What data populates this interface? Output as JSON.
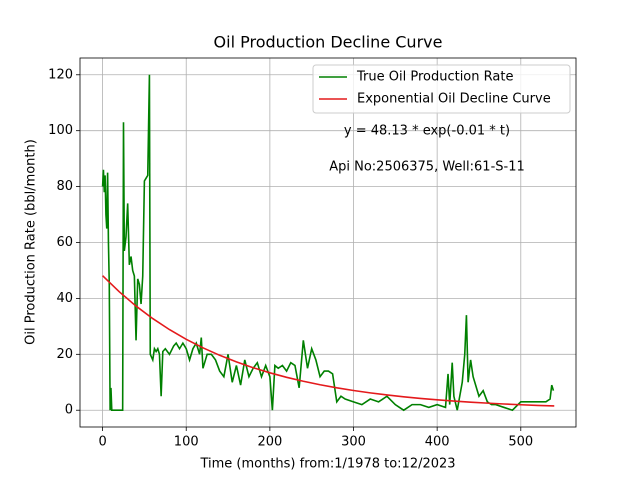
{
  "chart_data": {
    "type": "line",
    "title": "Oil Production Decline Curve",
    "x_label": "Time (months) from:1/1978 to:12/2023",
    "y_label": "Oil Production Rate (bbl/month)",
    "annotations": [
      "y = 48.13 * exp(-0.01 * t)",
      "Api No:2506375, Well:61-S-11"
    ],
    "xlim": [
      -27,
      566
    ],
    "ylim": [
      -6,
      126
    ],
    "xticks": [
      0,
      100,
      200,
      300,
      400,
      500
    ],
    "yticks": [
      0,
      20,
      40,
      60,
      80,
      100,
      120
    ],
    "grid": true,
    "legend": "upper right",
    "series": [
      {
        "name": "True Oil Production Rate",
        "color": "#008000",
        "x": [
          0,
          1,
          2,
          3,
          4,
          5,
          6,
          7,
          8,
          9,
          10,
          11,
          12,
          24,
          25,
          26,
          28,
          30,
          32,
          34,
          36,
          38,
          40,
          42,
          44,
          46,
          48,
          50,
          52,
          54,
          56,
          57,
          60,
          62,
          64,
          66,
          68,
          70,
          72,
          75,
          80,
          85,
          88,
          92,
          96,
          100,
          104,
          108,
          112,
          116,
          118,
          120,
          125,
          130,
          135,
          140,
          145,
          150,
          155,
          160,
          165,
          170,
          175,
          180,
          185,
          190,
          195,
          200,
          203,
          206,
          210,
          215,
          220,
          225,
          230,
          235,
          240,
          245,
          250,
          255,
          260,
          265,
          270,
          275,
          280,
          285,
          290,
          300,
          310,
          320,
          330,
          340,
          350,
          360,
          370,
          380,
          390,
          400,
          410,
          413,
          415,
          418,
          420,
          424,
          430,
          433,
          435,
          437,
          440,
          443,
          447,
          450,
          455,
          460,
          465,
          470,
          480,
          490,
          500,
          510,
          520,
          530,
          535,
          537,
          539
        ],
        "values": [
          80,
          86,
          78,
          84,
          70,
          65,
          85,
          60,
          45,
          0,
          8,
          0,
          0,
          0,
          103,
          57,
          62,
          74,
          52,
          55,
          50,
          48,
          25,
          47,
          45,
          38,
          48,
          82,
          83,
          84,
          120,
          20,
          18,
          22,
          21,
          22,
          20,
          5,
          21,
          22,
          20,
          23,
          24,
          22,
          24,
          22,
          18,
          22,
          24,
          20,
          26,
          15,
          20,
          20,
          18,
          14,
          12,
          20,
          10,
          16,
          9,
          18,
          12,
          15,
          17,
          12,
          16,
          12,
          0,
          16,
          15,
          16,
          14,
          17,
          16,
          8,
          25,
          15,
          22,
          18,
          12,
          14,
          14,
          13,
          3,
          5,
          4,
          3,
          2,
          4,
          3,
          5,
          2,
          0,
          2,
          2,
          1,
          2,
          1,
          13,
          2,
          17,
          5,
          0,
          10,
          20,
          34,
          10,
          18,
          12,
          8,
          5,
          7,
          3,
          2,
          2,
          1,
          0,
          3,
          3,
          3,
          3,
          4,
          9,
          7
        ]
      },
      {
        "name": "Exponential Oil Decline Curve",
        "color": "#e41a1c",
        "x": [
          0,
          20,
          40,
          60,
          80,
          100,
          120,
          140,
          160,
          180,
          200,
          220,
          240,
          260,
          280,
          300,
          320,
          340,
          360,
          380,
          400,
          420,
          440,
          460,
          480,
          500,
          520,
          540
        ],
        "values": [
          48.13,
          42.35,
          37.26,
          32.78,
          28.84,
          25.38,
          22.33,
          19.65,
          17.29,
          15.21,
          13.38,
          11.77,
          10.36,
          9.12,
          8.02,
          7.06,
          6.21,
          5.46,
          4.81,
          4.23,
          3.72,
          3.27,
          2.88,
          2.54,
          2.23,
          1.96,
          1.73,
          1.52
        ]
      }
    ]
  }
}
